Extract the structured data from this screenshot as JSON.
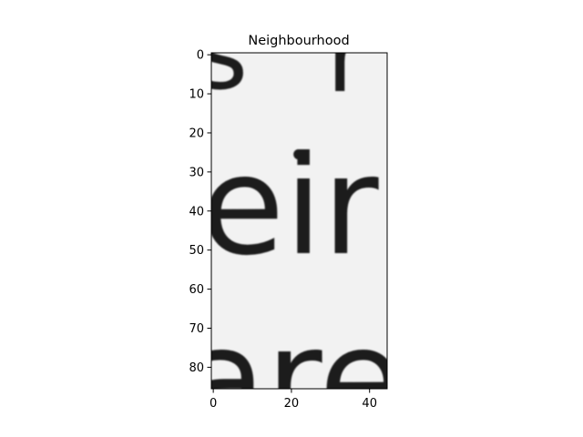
{
  "chart_data": {
    "type": "heatmap",
    "title": "Neighbourhood",
    "xlabel": "",
    "ylabel": "",
    "xlim": [
      -0.5,
      44.5
    ],
    "ylim": [
      85.5,
      -0.5
    ],
    "y_inverted": true,
    "x_ticks": [
      0,
      20,
      40
    ],
    "y_ticks": [
      0,
      10,
      20,
      30,
      40,
      50,
      60,
      70,
      80
    ],
    "colormap": "gray",
    "image_width": 45,
    "image_height": 86,
    "grid": false,
    "content": "grayscale crop of scanned serif text"
  },
  "text_fragments": {
    "top_left": "s",
    "top_right": "r",
    "middle": "eir",
    "bottom": "are"
  },
  "colors": {
    "paper": "#f2f2f2",
    "ink": "#1b1b1b",
    "axis": "#000000"
  }
}
